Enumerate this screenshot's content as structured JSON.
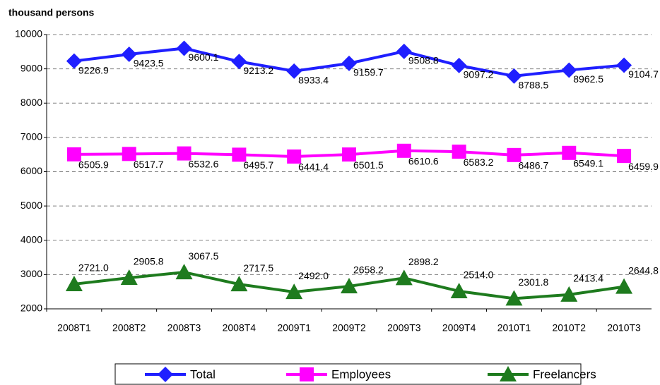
{
  "chart_data": {
    "type": "line",
    "y_axis_label": "thousand persons",
    "categories": [
      "2008T1",
      "2008T2",
      "2008T3",
      "2008T4",
      "2009T1",
      "2009T2",
      "2009T3",
      "2009T4",
      "2010T1",
      "2010T2",
      "2010T3"
    ],
    "series": [
      {
        "name": "Total",
        "color": "#1f1fff",
        "marker": "diamond",
        "values": [
          9226.9,
          9423.5,
          9600.1,
          9213.2,
          8933.4,
          9159.7,
          9508.8,
          9097.2,
          8788.5,
          8962.5,
          9104.7
        ]
      },
      {
        "name": "Employees",
        "color": "#ff00ff",
        "marker": "square",
        "values": [
          6505.9,
          6517.7,
          6532.6,
          6495.7,
          6441.4,
          6501.5,
          6610.6,
          6583.2,
          6486.7,
          6549.1,
          6459.9
        ]
      },
      {
        "name": "Freelancers",
        "color": "#1e7b1e",
        "marker": "triangle",
        "values": [
          2721.0,
          2905.8,
          3067.5,
          2717.5,
          2492.0,
          2658.2,
          2898.2,
          2514.0,
          2301.8,
          2413.4,
          2644.8
        ],
        "value_labels": [
          "2721.0",
          "2905.8",
          "3067.5",
          "2717.5",
          "2492.0",
          "2658.2",
          "2898.2",
          "2514.0",
          "2301.8",
          "2413.4",
          "2644.8"
        ]
      }
    ],
    "ylim": [
      2000,
      10000
    ],
    "yticks": [
      2000,
      3000,
      4000,
      5000,
      6000,
      7000,
      8000,
      9000,
      10000
    ],
    "grid": true,
    "legend": "bottom"
  }
}
